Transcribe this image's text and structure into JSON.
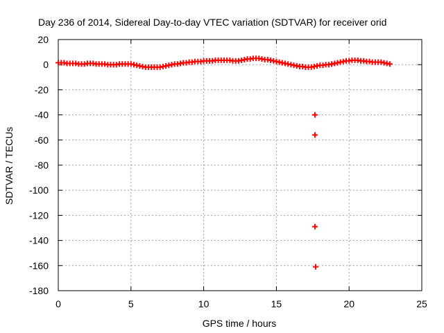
{
  "chart_data": {
    "type": "scatter",
    "title": "Day 236 of 2014, Sidereal Day-to-day VTEC variation (SDTVAR) for receiver orid",
    "xlabel": "GPS time / hours",
    "ylabel": "SDTVAR / TECUs",
    "xlim": [
      0,
      25
    ],
    "ylim": [
      -180,
      20
    ],
    "xticks": [
      0,
      5,
      10,
      15,
      20,
      25
    ],
    "yticks": [
      20,
      0,
      -20,
      -40,
      -60,
      -80,
      -100,
      -120,
      -140,
      -160,
      -180
    ],
    "grid": true,
    "marker": "+",
    "color": "#ff0000",
    "series": [
      {
        "name": "SDTVAR",
        "x": [
          0.0,
          0.2,
          0.4,
          0.6,
          0.8,
          1.0,
          1.2,
          1.4,
          1.6,
          1.8,
          2.0,
          2.2,
          2.4,
          2.6,
          2.8,
          3.0,
          3.2,
          3.4,
          3.6,
          3.8,
          4.0,
          4.2,
          4.4,
          4.6,
          4.8,
          5.0,
          5.2,
          5.4,
          5.6,
          5.8,
          6.0,
          6.2,
          6.4,
          6.6,
          6.8,
          7.0,
          7.2,
          7.4,
          7.6,
          7.8,
          8.0,
          8.2,
          8.4,
          8.6,
          8.8,
          9.0,
          9.2,
          9.4,
          9.6,
          9.8,
          10.0,
          10.2,
          10.4,
          10.6,
          10.8,
          11.0,
          11.2,
          11.4,
          11.6,
          11.8,
          12.0,
          12.2,
          12.4,
          12.6,
          12.8,
          13.0,
          13.2,
          13.4,
          13.6,
          13.8,
          14.0,
          14.2,
          14.4,
          14.6,
          14.8,
          15.0,
          15.2,
          15.4,
          15.6,
          15.8,
          16.0,
          16.2,
          16.4,
          16.6,
          16.8,
          17.0,
          17.2,
          17.4,
          17.6,
          17.8,
          18.0,
          18.2,
          18.4,
          18.6,
          18.8,
          19.0,
          19.2,
          19.4,
          19.6,
          19.8,
          20.0,
          20.2,
          20.4,
          20.6,
          20.8,
          21.0,
          21.2,
          21.4,
          21.6,
          21.8,
          22.0,
          22.2,
          22.4,
          22.6,
          22.8,
          17.65,
          17.65,
          17.65,
          17.7
        ],
        "y": [
          1.5,
          1.5,
          1.5,
          1.0,
          1.0,
          1.0,
          1.0,
          0.5,
          0.5,
          0.5,
          1.0,
          1.0,
          1.0,
          0.5,
          0.5,
          0.5,
          0.5,
          0.0,
          0.0,
          0.0,
          0.0,
          0.5,
          0.5,
          0.5,
          0.5,
          0.5,
          0.0,
          -0.5,
          -1.0,
          -1.5,
          -2.0,
          -2.0,
          -2.0,
          -2.0,
          -2.0,
          -2.0,
          -1.5,
          -1.0,
          -0.5,
          0.0,
          0.5,
          0.5,
          1.0,
          1.5,
          1.5,
          2.0,
          2.0,
          2.5,
          2.5,
          2.5,
          3.0,
          3.0,
          3.0,
          3.0,
          3.5,
          3.5,
          3.5,
          3.5,
          3.5,
          3.5,
          3.0,
          3.0,
          3.0,
          3.5,
          4.0,
          4.5,
          4.5,
          5.0,
          5.0,
          5.0,
          4.5,
          4.0,
          4.0,
          3.5,
          3.0,
          2.5,
          2.0,
          1.5,
          1.0,
          0.5,
          0.0,
          -0.5,
          -1.0,
          -1.5,
          -1.5,
          -2.0,
          -2.0,
          -2.0,
          -1.5,
          -1.0,
          -0.5,
          -0.5,
          0.0,
          0.0,
          0.5,
          1.0,
          1.5,
          2.0,
          2.5,
          3.0,
          3.0,
          3.5,
          3.5,
          3.5,
          3.0,
          3.0,
          2.5,
          2.5,
          2.0,
          2.0,
          2.0,
          2.0,
          1.5,
          1.0,
          0.5,
          -40,
          -56,
          -129,
          -161
        ]
      }
    ]
  }
}
